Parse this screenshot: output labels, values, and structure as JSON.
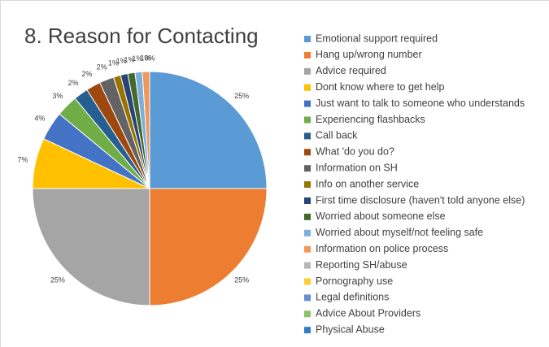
{
  "chart_data": {
    "type": "pie",
    "title": "8. Reason for Contacting",
    "categories": [
      "Emotional support required",
      "Hang up/wrong number",
      "Advice required",
      "Dont know where to get help",
      "Just want to talk to someone who understands",
      "Experiencing flashbacks",
      "Call back",
      "What 'do you do?",
      "Information on SH",
      "Info on another service",
      "First time disclosure (haven't told anyone else)",
      "Worried about someone else",
      "Worried about myself/not feeling safe",
      "Information on police process",
      "Reporting SH/abuse",
      "Pornography use",
      "Legal definitions",
      "Advice About Providers",
      "Physical Abuse"
    ],
    "values": [
      25,
      25,
      25,
      7,
      4,
      3,
      2,
      2,
      2,
      1,
      1,
      1,
      1,
      1,
      0,
      0,
      0,
      0,
      0
    ],
    "value_labels": [
      "25%",
      "25%",
      "25%",
      "7%",
      "4%",
      "3%",
      "2%",
      "2%",
      "2%",
      "1%",
      "1%",
      "1%",
      "1%",
      "1%",
      "0%",
      null,
      null,
      null,
      null
    ],
    "colors": [
      "#5b9bd5",
      "#ed7d31",
      "#a5a5a5",
      "#ffc000",
      "#4472c4",
      "#70ad47",
      "#255e91",
      "#9e480e",
      "#636363",
      "#997300",
      "#264478",
      "#43682b",
      "#7cafdd",
      "#f1975a",
      "#b7b7b7",
      "#ffcd33",
      "#698ed0",
      "#8cc168",
      "#327dc2"
    ]
  }
}
